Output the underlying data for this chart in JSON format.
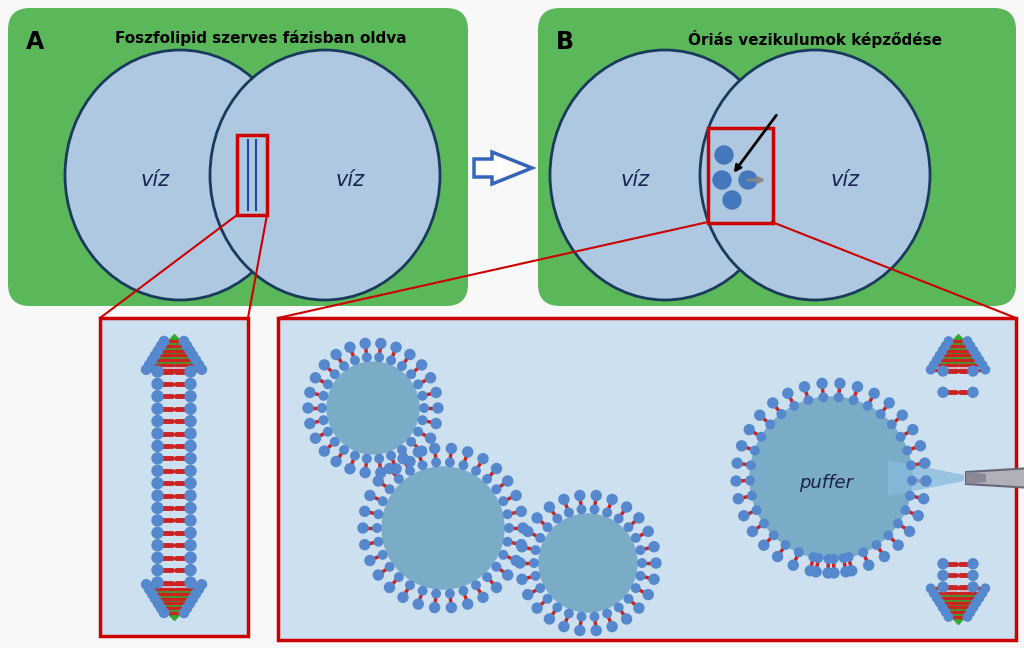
{
  "green_bg": "#5ab85a",
  "light_blue_circle": "#adc8e0",
  "dark_blue_circle_edge": "#1a3a5c",
  "red_box": "#cc0000",
  "light_blue_box": "#cce0f0",
  "panel_A_title": "Foszfolipid szerves fázisban oldva",
  "panel_B_title": "Óriás vezikulumok képződése",
  "viz_label": "víz",
  "puffer_label": "puffer",
  "phospholipid_head_color": "#5588cc",
  "phospholipid_tail_color": "#cc2222",
  "green_tri": "#33aa33",
  "arrow_blue": "#3366bb",
  "vesicle_fill": "#7aacc8",
  "white": "#ffffff",
  "bg_white": "#f8f8f8"
}
